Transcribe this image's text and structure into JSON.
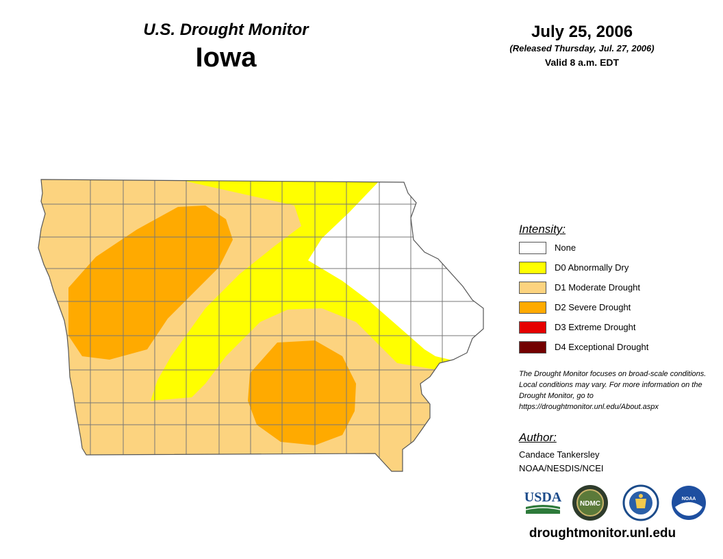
{
  "header": {
    "monitor_title": "U.S. Drought Monitor",
    "state": "Iowa",
    "date": "July 25, 2006",
    "released": "(Released Thursday, Jul. 27, 2006)",
    "valid": "Valid 8 a.m. EDT"
  },
  "legend": {
    "heading": "Intensity:",
    "items": [
      {
        "label": "None",
        "color": "#ffffff"
      },
      {
        "label": "D0 Abnormally Dry",
        "color": "#ffff00"
      },
      {
        "label": "D1 Moderate Drought",
        "color": "#fcd37f"
      },
      {
        "label": "D2 Severe Drought",
        "color": "#ffaa00"
      },
      {
        "label": "D3 Extreme Drought",
        "color": "#e60000"
      },
      {
        "label": "D4 Exceptional Drought",
        "color": "#730000"
      }
    ]
  },
  "note": "The Drought Monitor focuses on broad-scale conditions. Local conditions may vary. For more information on the Drought Monitor, go to https://droughtmonitor.unl.edu/About.aspx",
  "author": {
    "heading": "Author:",
    "name": "Candace Tankersley",
    "org": "NOAA/NESDIS/NCEI"
  },
  "logos": [
    "USDA",
    "NDMC",
    "Department of Commerce seal",
    "NOAA"
  ],
  "logo_text": {
    "usda": "USDA",
    "ndmc": "NDMC",
    "noaa": "NOAA"
  },
  "site_url": "droughtmonitor.unl.edu"
}
